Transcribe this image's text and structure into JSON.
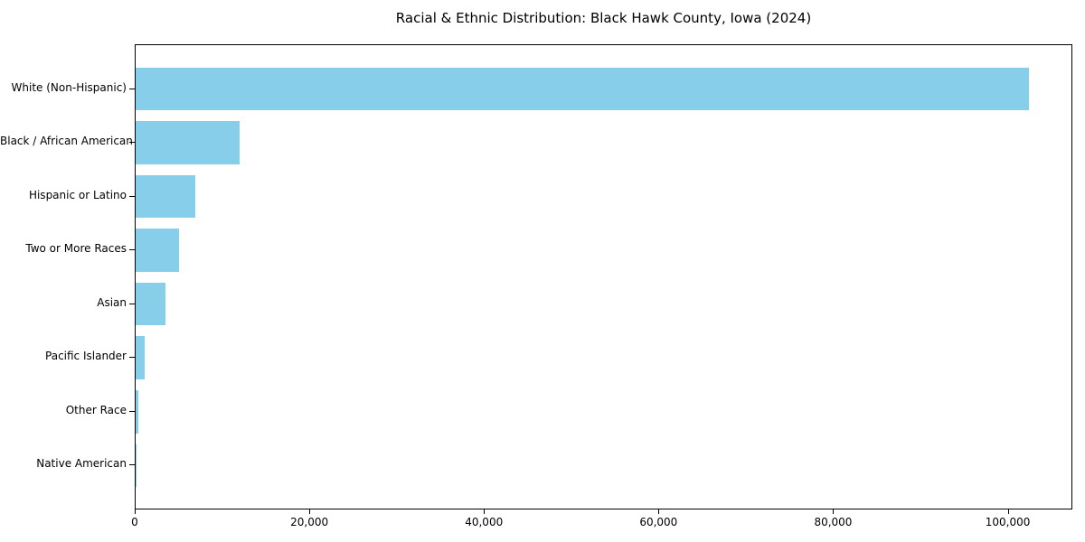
{
  "chart_data": {
    "type": "bar",
    "orientation": "horizontal",
    "title": "Racial & Ethnic Distribution: Black Hawk County, Iowa (2024)",
    "categories": [
      "White (Non-Hispanic)",
      "Black / African American",
      "Hispanic or Latino",
      "Two or More Races",
      "Asian",
      "Pacific Islander",
      "Other Race",
      "Native American"
    ],
    "values": [
      102300,
      11900,
      6800,
      5000,
      3400,
      1000,
      300,
      50
    ],
    "xlabel": "",
    "ylabel": "",
    "xlim": [
      0,
      107400
    ],
    "xticks": [
      0,
      20000,
      40000,
      60000,
      80000,
      100000
    ],
    "xtick_labels": [
      "0",
      "20,000",
      "40,000",
      "60,000",
      "80,000",
      "100,000"
    ],
    "grid": false,
    "legend": null,
    "bar_color": "#87CEEB",
    "axis_color": "#000000",
    "background_color": "#ffffff"
  }
}
